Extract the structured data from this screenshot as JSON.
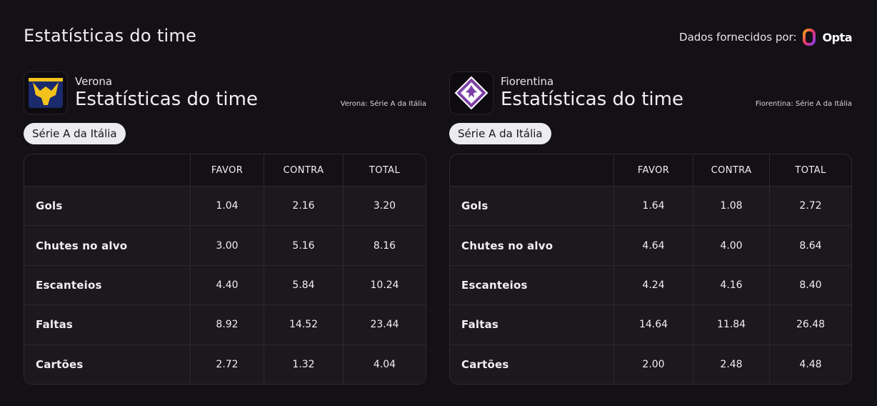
{
  "header": {
    "title": "Estatísticas do time",
    "provider_label": "Dados fornecidos por:",
    "provider_name": "Opta"
  },
  "teams": [
    {
      "name": "Verona",
      "title": "Estatísticas do time",
      "league_note": "Verona: Série A da Itália",
      "chip": "Série A da Itália",
      "table": {
        "columns": [
          "FAVOR",
          "CONTRA",
          "TOTAL"
        ],
        "rows": [
          [
            "Gols",
            "1.04",
            "2.16",
            "3.20"
          ],
          [
            "Chutes no alvo",
            "3.00",
            "5.16",
            "8.16"
          ],
          [
            "Escanteios",
            "4.40",
            "5.84",
            "10.24"
          ],
          [
            "Faltas",
            "8.92",
            "14.52",
            "23.44"
          ],
          [
            "Cartões",
            "2.72",
            "1.32",
            "4.04"
          ]
        ]
      }
    },
    {
      "name": "Fiorentina",
      "title": "Estatísticas do time",
      "league_note": "Fiorentina: Série A da Itália",
      "chip": "Série A da Itália",
      "table": {
        "columns": [
          "FAVOR",
          "CONTRA",
          "TOTAL"
        ],
        "rows": [
          [
            "Gols",
            "1.64",
            "1.08",
            "2.72"
          ],
          [
            "Chutes no alvo",
            "4.64",
            "4.00",
            "8.64"
          ],
          [
            "Escanteios",
            "4.24",
            "4.16",
            "8.40"
          ],
          [
            "Faltas",
            "14.64",
            "11.84",
            "26.48"
          ],
          [
            "Cartões",
            "2.00",
            "2.48",
            "4.48"
          ]
        ]
      }
    }
  ]
}
